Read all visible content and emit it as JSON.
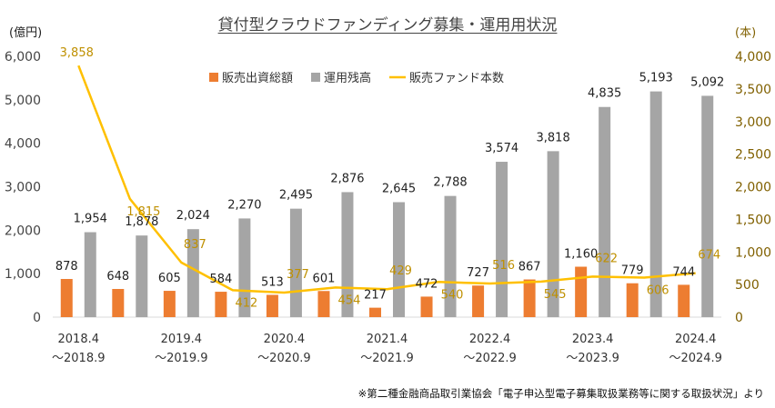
{
  "chart_data": {
    "type": "bar",
    "title": "貸付型クラウドファンディング募集・運用用状況",
    "categories": [
      [
        "2018.4",
        "～2018.9"
      ],
      [
        "",
        ""
      ],
      [
        "2019.4",
        "～2019.9"
      ],
      [
        "",
        ""
      ],
      [
        "2020.4",
        "～2020.9"
      ],
      [
        "",
        ""
      ],
      [
        "2021.4",
        "～2021.9"
      ],
      [
        "",
        ""
      ],
      [
        "2022.4",
        "～2022.9"
      ],
      [
        "",
        ""
      ],
      [
        "2023.4",
        "～2023.9"
      ],
      [
        "",
        ""
      ],
      [
        "2024.4",
        "～2024.9"
      ]
    ],
    "y_left_unit": "(億円)",
    "y_right_unit": "(本)",
    "ylim_left": [
      0,
      6000
    ],
    "ylim_right": [
      0,
      4000
    ],
    "y_left_ticks": [
      "0",
      "1,000",
      "2,000",
      "3,000",
      "4,000",
      "5,000",
      "6,000"
    ],
    "y_right_ticks": [
      "0",
      "500",
      "1,000",
      "1,500",
      "2,000",
      "2,500",
      "3,000",
      "3,500",
      "4,000"
    ],
    "grid": false,
    "legend_position": "top",
    "series": [
      {
        "name": "販売出資総額",
        "kind": "bar",
        "axis": "left",
        "color": "#ED7D31",
        "values": [
          878,
          648,
          605,
          584,
          513,
          601,
          217,
          472,
          727,
          867,
          1160,
          779,
          744
        ],
        "labels": [
          "878",
          "648",
          "605",
          "584",
          "513",
          "601",
          "217",
          "472",
          "727",
          "867",
          "1,160",
          "779",
          "744"
        ]
      },
      {
        "name": "運用残高",
        "kind": "bar",
        "axis": "left",
        "color": "#A5A5A5",
        "values": [
          1954,
          1878,
          2024,
          2270,
          2495,
          2876,
          2645,
          2788,
          3574,
          3818,
          4835,
          5193,
          5092
        ],
        "labels": [
          "1,954",
          "1,878",
          "2,024",
          "2,270",
          "2,495",
          "2,876",
          "2,645",
          "2,788",
          "3,574",
          "3,818",
          "4,835",
          "5,193",
          "5,092"
        ]
      },
      {
        "name": "販売ファンド本数",
        "kind": "line",
        "axis": "right",
        "color": "#FFC000",
        "label_color": "#BF9000",
        "values": [
          3858,
          1815,
          837,
          412,
          377,
          454,
          429,
          540,
          516,
          545,
          622,
          606,
          674
        ],
        "labels": [
          "3,858",
          "1,815",
          "837",
          "412",
          "377",
          "454",
          "429",
          "540",
          "516",
          "545",
          "622",
          "606",
          "674"
        ]
      }
    ],
    "footnote": "※第二種金融商品取引業協会「電子申込型電子募集取扱業務等に関する取扱状況」より"
  }
}
